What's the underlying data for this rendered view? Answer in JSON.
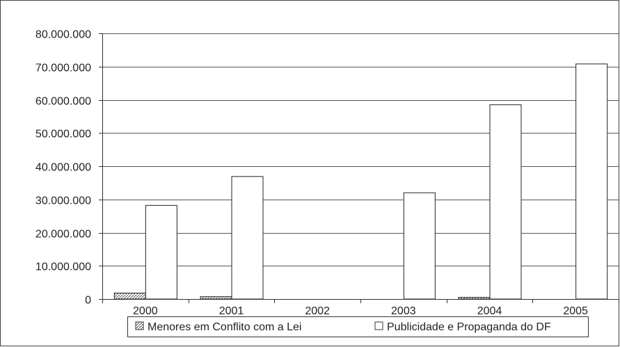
{
  "chart_data": {
    "type": "bar",
    "categories": [
      "2000",
      "2001",
      "2002",
      "2003",
      "2004",
      "2005"
    ],
    "series": [
      {
        "name": "Menores em Conflito com a Lei",
        "values": [
          1800000,
          700000,
          0,
          0,
          500000,
          0
        ],
        "pattern": "hatched"
      },
      {
        "name": "Publicidade e Propaganda do DF",
        "values": [
          28200000,
          36900000,
          0,
          32000000,
          58500000,
          70800000
        ],
        "pattern": "white"
      }
    ],
    "ylim": [
      0,
      80000000
    ],
    "yticks": [
      "0",
      "10.000.000",
      "20.000.000",
      "30.000.000",
      "40.000.000",
      "50.000.000",
      "60.000.000",
      "70.000.000",
      "80.000.000"
    ],
    "grid": true,
    "legend_position": "bottom",
    "colors": {
      "axis": "#333333",
      "bar_fill": "#ffffff",
      "bar_stroke": "#222222",
      "hatch": "#555555"
    }
  }
}
